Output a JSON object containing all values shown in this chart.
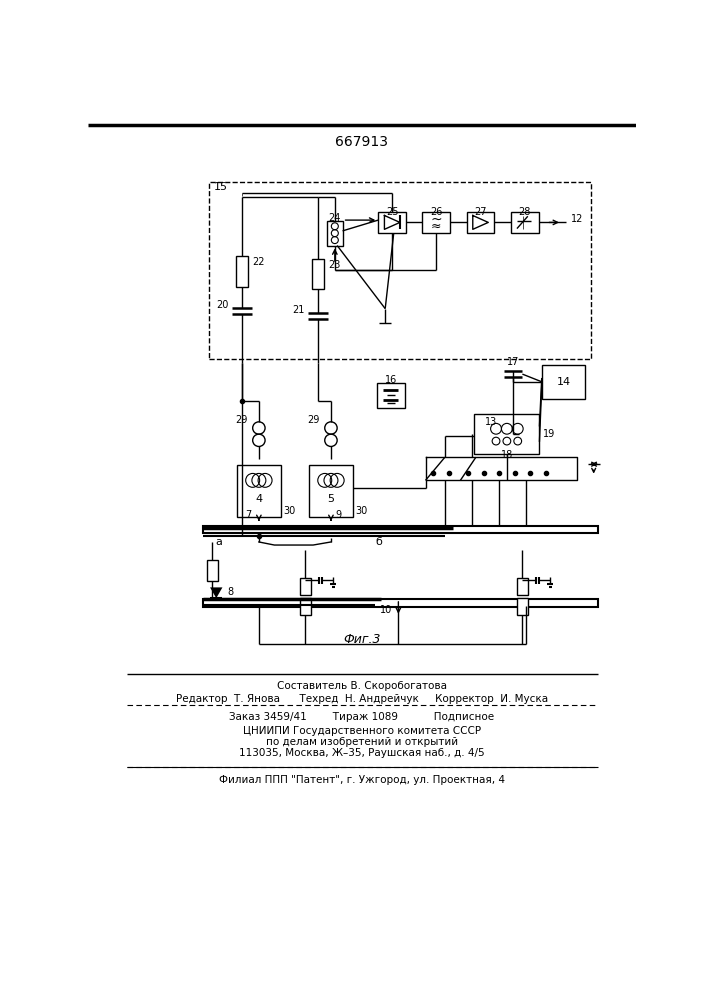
{
  "title": "667913",
  "fig_label": "Фиг.3",
  "bg_color": "#ffffff",
  "line_color": "#000000",
  "footer_line1": "Составитель В. Скоробогатова",
  "footer_line2": "Редактор  Т. Янова      Техред  Н. Андрейчук     Корректор  И. Муска",
  "footer_line3": "Заказ 3459/41        Тираж 1089           Подписное",
  "footer_line4": "ЦНИИПИ Государственного комитета СССР",
  "footer_line5": "по делам изобретений и открытий",
  "footer_line6": "113035, Москва, Ж–35, Раушская наб., д. 4/5",
  "footer_line7": "Филиал ППП \"Патент\", г. Ужгород, ул. Проектная, 4"
}
